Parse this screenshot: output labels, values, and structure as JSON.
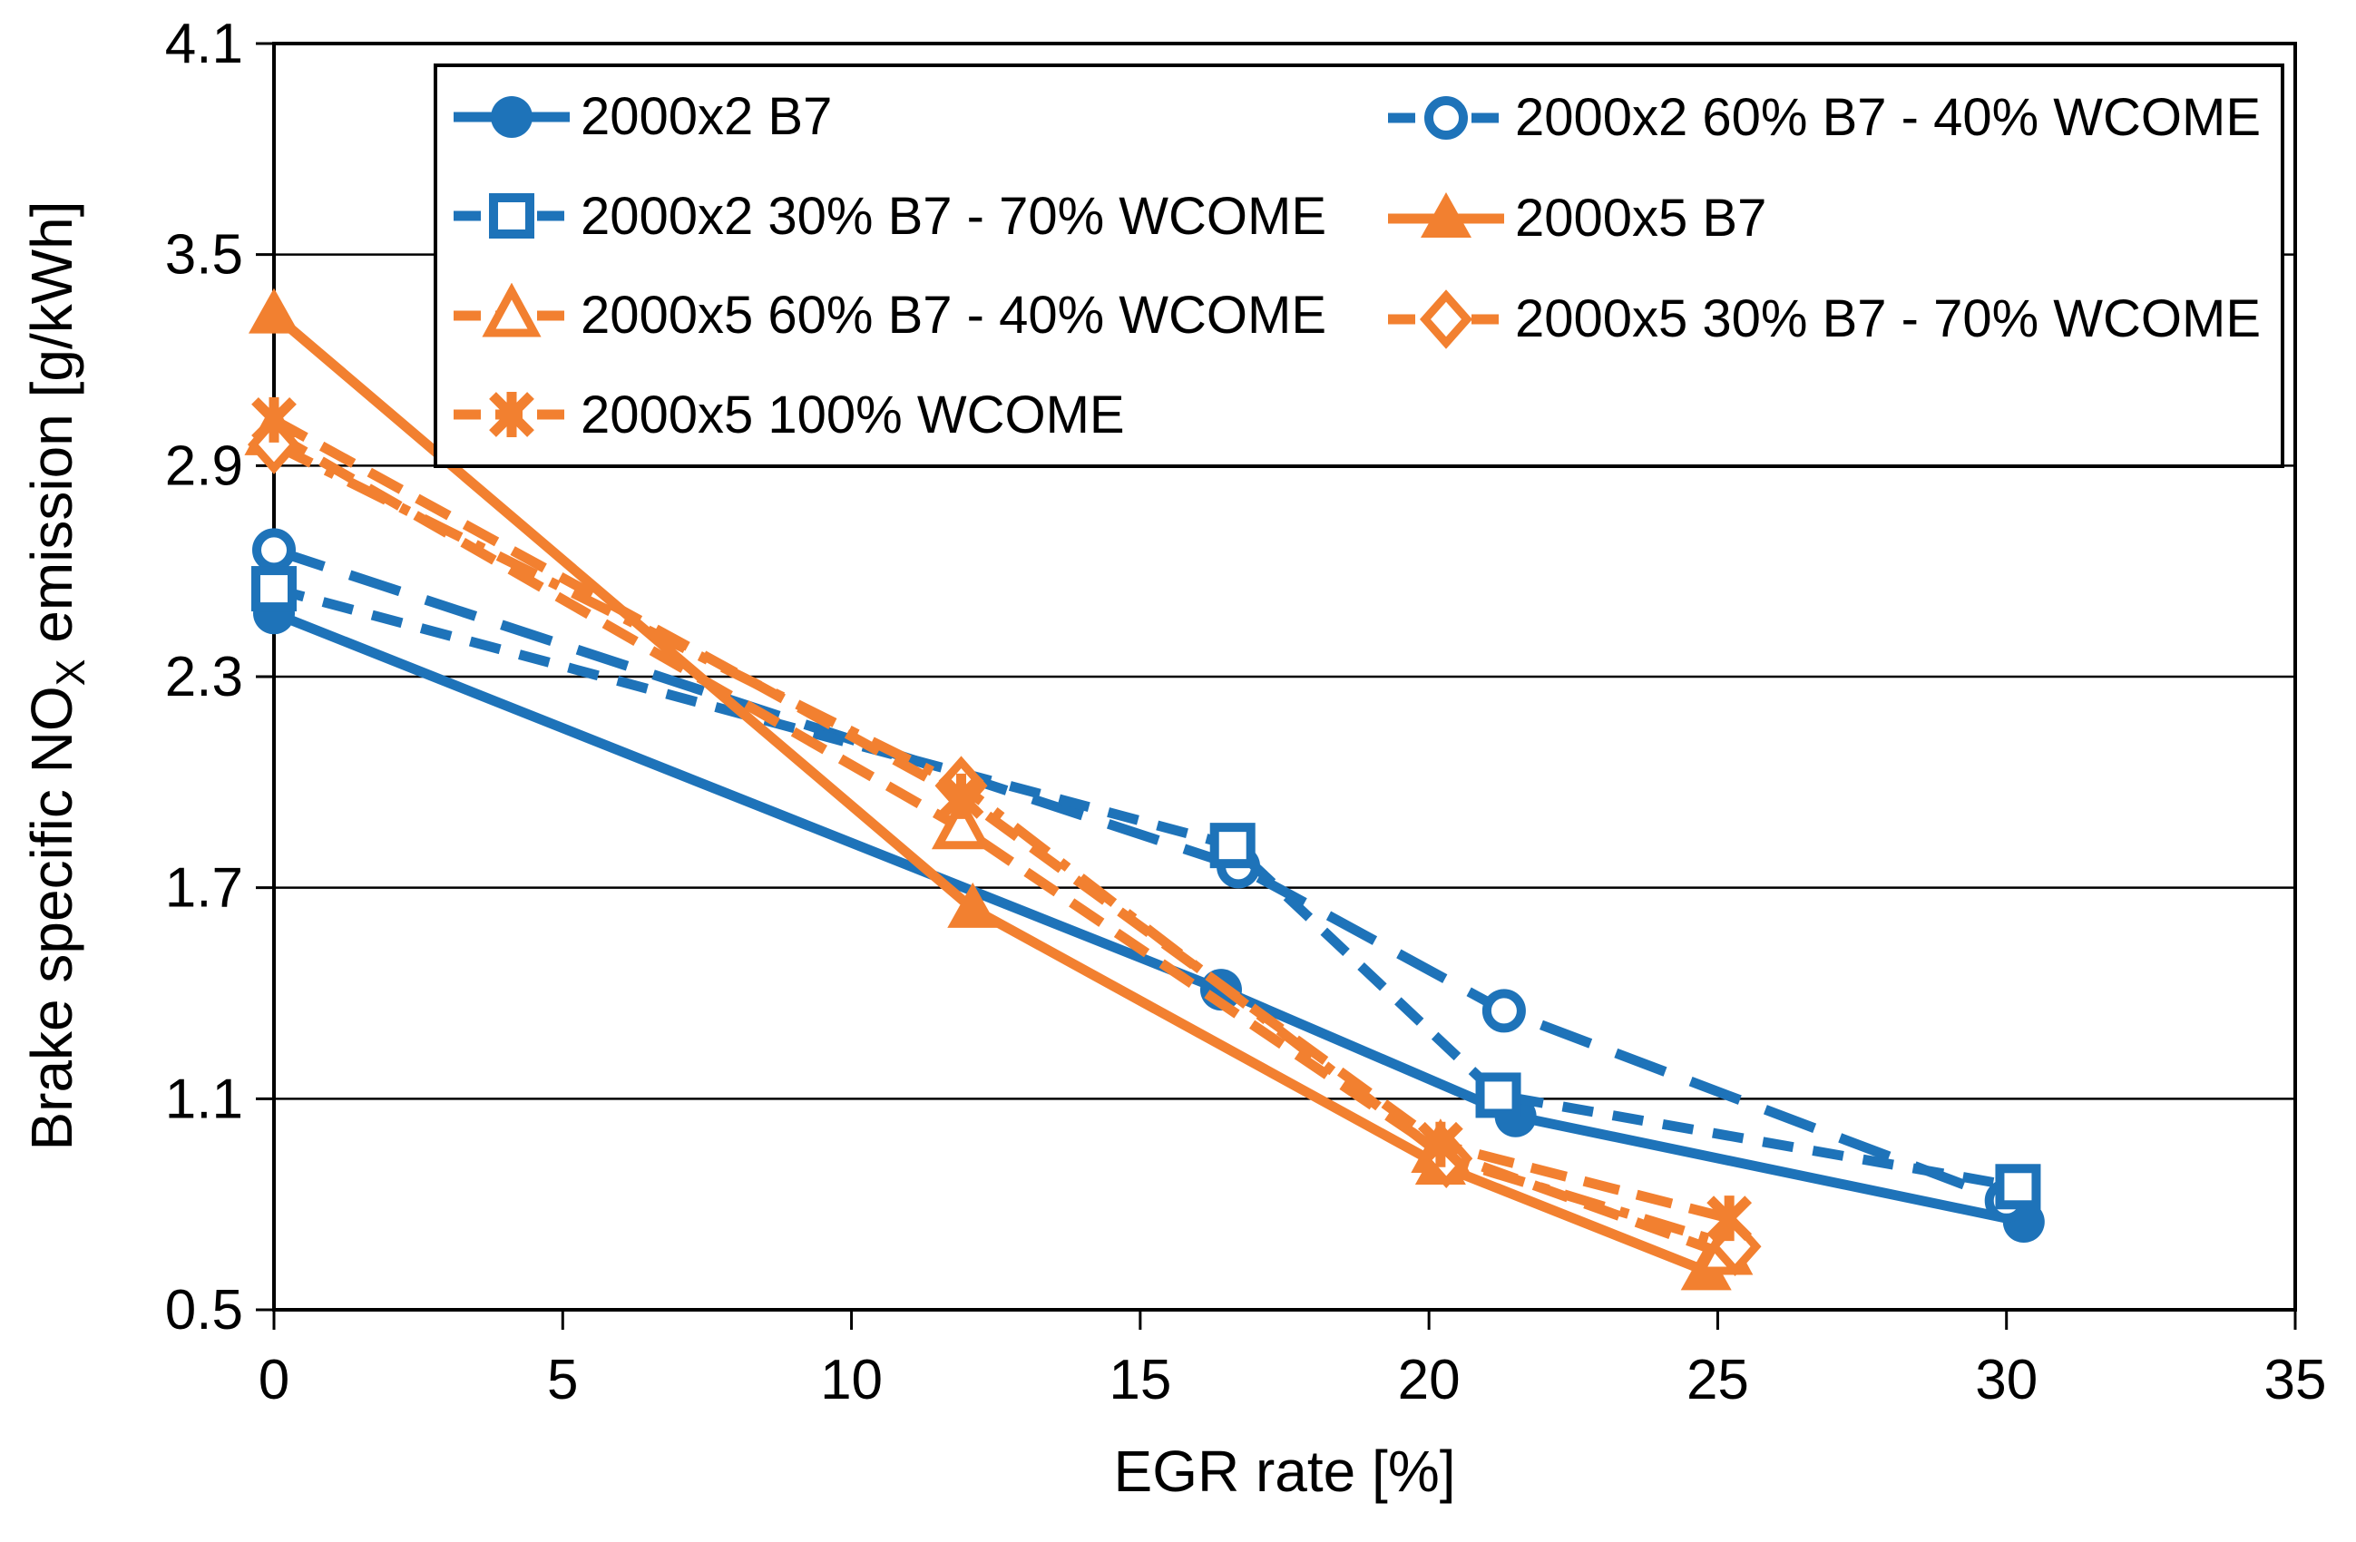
{
  "chart_data": {
    "type": "line",
    "title": "",
    "xlabel": "EGR rate [%]",
    "ylabel": {
      "pre": "Brake specific NO",
      "sub": "X",
      "post": " emission [g/kWh]"
    },
    "xlim": [
      0,
      35
    ],
    "ylim": [
      0.5,
      4.1
    ],
    "xticks": [
      0,
      5,
      10,
      15,
      20,
      25,
      30,
      35
    ],
    "xtick_labels": [
      "0",
      "5",
      "10",
      "15",
      "20",
      "25",
      "30",
      "35"
    ],
    "yticks": [
      0.5,
      1.1,
      1.7,
      2.3,
      2.9,
      3.5,
      4.1
    ],
    "ytick_labels": [
      "0.5",
      "1.1",
      "1.7",
      "2.3",
      "2.9",
      "3.5",
      "4.1"
    ],
    "grid": "horizontal",
    "frame": true,
    "colors": {
      "blue": "#1E73B9",
      "orange": "#F28030"
    },
    "legend": {
      "position": "top-inside",
      "border": true,
      "columns": [
        [
          0,
          2,
          4,
          6
        ],
        [
          1,
          3,
          5
        ]
      ]
    },
    "series": [
      {
        "name": "2000x2 B7",
        "color": "#1E73B9",
        "line": "solid",
        "marker": "circle-filled",
        "points": [
          [
            0,
            2.48
          ],
          [
            16.4,
            1.41
          ],
          [
            21.5,
            1.05
          ],
          [
            30.3,
            0.75
          ]
        ]
      },
      {
        "name": "2000x2 60% B7 - 40% WCOME",
        "color": "#1E73B9",
        "line": "long-dash",
        "marker": "circle-open",
        "points": [
          [
            0,
            2.66
          ],
          [
            16.7,
            1.76
          ],
          [
            21.3,
            1.35
          ],
          [
            30.0,
            0.81
          ]
        ]
      },
      {
        "name": "2000x2 30% B7 - 70% WCOME",
        "color": "#1E73B9",
        "line": "short-dash",
        "marker": "square-open",
        "points": [
          [
            0,
            2.55
          ],
          [
            16.6,
            1.82
          ],
          [
            21.2,
            1.11
          ],
          [
            30.2,
            0.85
          ]
        ]
      },
      {
        "name": "2000x5 B7",
        "color": "#F28030",
        "line": "solid",
        "marker": "triangle-filled",
        "points": [
          [
            0,
            3.33
          ],
          [
            12.1,
            1.64
          ],
          [
            20.2,
            0.91
          ],
          [
            24.8,
            0.61
          ]
        ]
      },
      {
        "name": "2000x5 60% B7 - 40% WCOME",
        "color": "#F28030",
        "line": "dash",
        "marker": "triangle-open",
        "points": [
          [
            0,
            2.99
          ],
          [
            11.9,
            1.87
          ],
          [
            20.2,
            0.95
          ],
          [
            25.1,
            0.66
          ]
        ]
      },
      {
        "name": "2000x5 30% B7 - 70% WCOME",
        "color": "#F28030",
        "line": "dash-dot",
        "marker": "diamond-open",
        "points": [
          [
            0,
            2.96
          ],
          [
            11.9,
            1.99
          ],
          [
            20.3,
            0.93
          ],
          [
            25.3,
            0.68
          ]
        ]
      },
      {
        "name": "2000x5 100% WCOME",
        "color": "#F28030",
        "line": "dash",
        "marker": "star",
        "points": [
          [
            0,
            3.03
          ],
          [
            11.9,
            1.96
          ],
          [
            20.2,
            0.97
          ],
          [
            25.2,
            0.76
          ]
        ]
      }
    ]
  }
}
